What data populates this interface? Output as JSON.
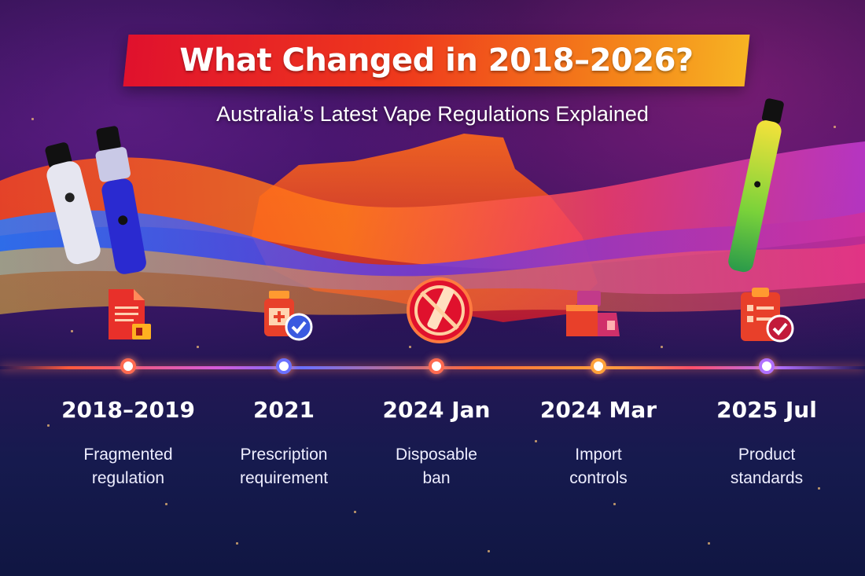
{
  "header": {
    "title": "What Changed in 2018–2026?",
    "subtitle": "Australia’s Latest Vape Regulations Explained"
  },
  "timeline": [
    {
      "year": "2018–2019",
      "line1": "Fragmented",
      "line2": "regulation",
      "icon": "document-icon"
    },
    {
      "year": "2021",
      "line1": "Prescription",
      "line2": "requirement",
      "icon": "medicine-bottle-check-icon"
    },
    {
      "year": "2024 Jan",
      "line1": "Disposable",
      "line2": "ban",
      "icon": "no-vape-icon"
    },
    {
      "year": "2024 Mar",
      "line1": "Import",
      "line2": "controls",
      "icon": "shipping-boxes-icon"
    },
    {
      "year": "2025 Jul",
      "line1": "Product",
      "line2": "standards",
      "icon": "clipboard-check-icon"
    }
  ],
  "colors": {
    "banner_start": "#e0112d",
    "banner_end": "#f7b323",
    "accent_red": "#e0112d",
    "background": "#1a1244"
  }
}
